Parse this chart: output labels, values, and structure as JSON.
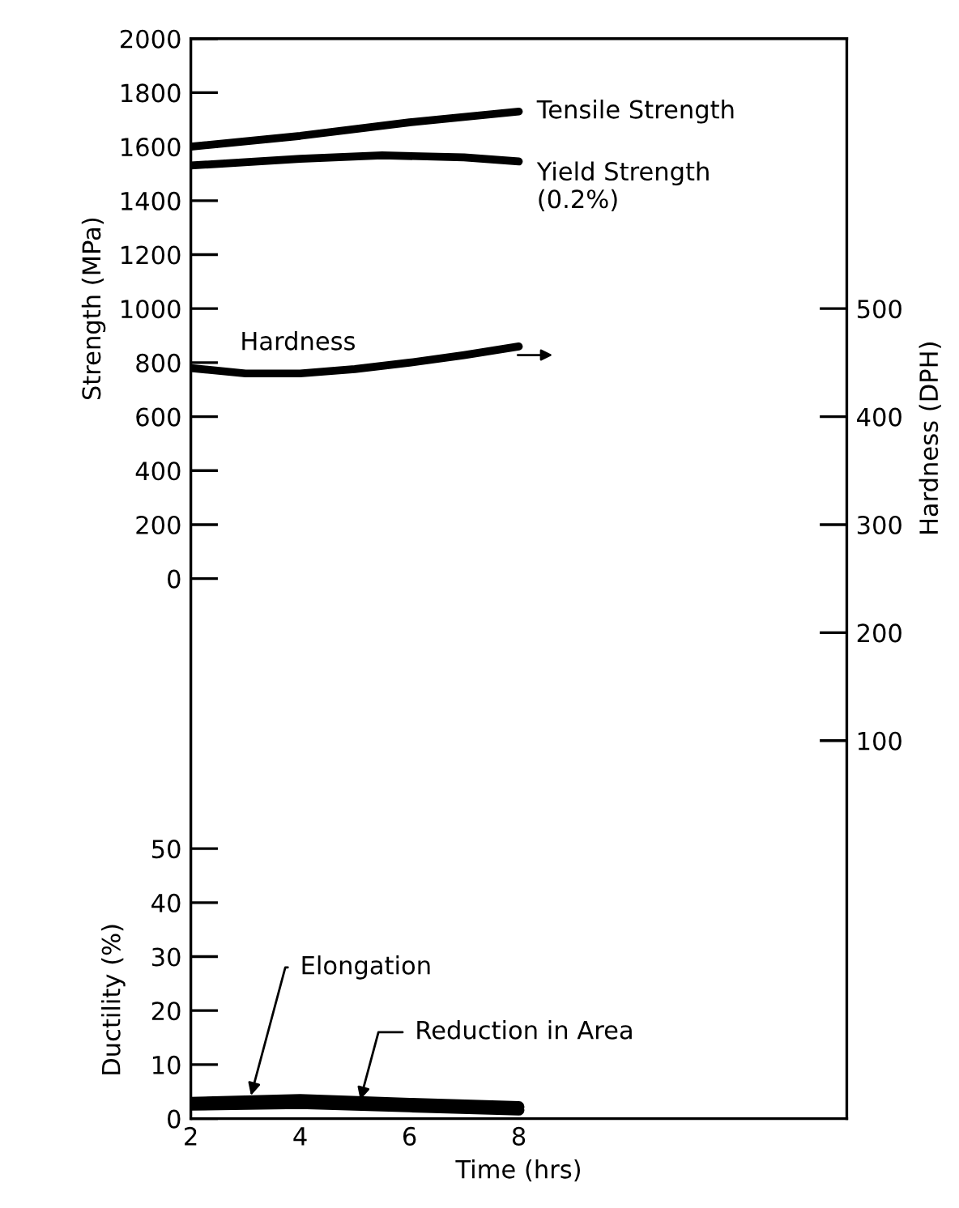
{
  "chart_data": {
    "type": "line",
    "xlabel": "Time (hrs)",
    "ylabel": "Strength (MPa)",
    "y2label": "Hardness (DPH)",
    "y3label": "Ductility (%)",
    "xlim": [
      2,
      14
    ],
    "xticks": [
      2,
      4,
      6,
      8
    ],
    "ylim": [
      -2000,
      2000
    ],
    "yticks": [
      0,
      200,
      400,
      600,
      800,
      1000,
      1200,
      1400,
      1600,
      1800,
      2000
    ],
    "y2lim": [
      -250,
      750
    ],
    "y2ticks": [
      100,
      200,
      300,
      400,
      500
    ],
    "y3lim": [
      0,
      200
    ],
    "y3ticks": [
      0,
      10,
      20,
      30,
      40,
      50
    ],
    "grid": false,
    "marker": "none",
    "line_style": "solid",
    "series": [
      {
        "name": "Tensile Strength",
        "color": "#000000",
        "axis": "y",
        "x": [
          2,
          4,
          6,
          8
        ],
        "values": [
          1600,
          1640,
          1690,
          1730
        ]
      },
      {
        "name": "Yield Strength\n(0.2%)",
        "color": "#000000",
        "axis": "y",
        "x": [
          2,
          4,
          5.5,
          7,
          8
        ],
        "values": [
          1530,
          1555,
          1568,
          1560,
          1545
        ]
      },
      {
        "name": "Hardness",
        "color": "#000000",
        "axis": "y2",
        "x": [
          2,
          3,
          4,
          5,
          6,
          7,
          8
        ],
        "values": [
          445,
          440,
          440,
          444,
          450,
          457,
          465
        ]
      },
      {
        "name": "Elongation",
        "color": "#000000",
        "axis": "y3",
        "x": [
          2,
          4,
          6,
          8
        ],
        "values": [
          3,
          3.5,
          2.8,
          2.2
        ]
      },
      {
        "name": "Reduction in Area",
        "color": "#000000",
        "axis": "y3",
        "x": [
          2,
          4,
          6,
          8
        ],
        "values": [
          2.5,
          2.8,
          2.2,
          1.6
        ]
      }
    ]
  }
}
